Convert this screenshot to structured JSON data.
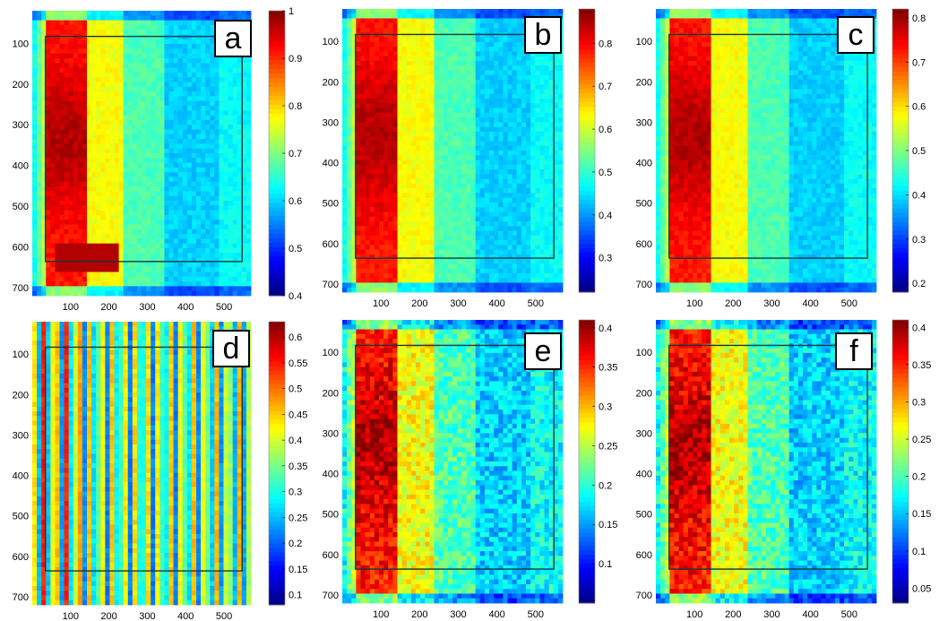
{
  "figure": {
    "panels": [
      {
        "id": "a",
        "label": "a"
      },
      {
        "id": "b",
        "label": "b"
      },
      {
        "id": "c",
        "label": "c"
      },
      {
        "id": "d",
        "label": "d"
      },
      {
        "id": "e",
        "label": "e"
      },
      {
        "id": "f",
        "label": "f"
      }
    ]
  },
  "chart_data": [
    {
      "type": "heatmap",
      "panel": "a",
      "colormap": "jet",
      "pattern": "smooth",
      "x_ticks": [
        100,
        200,
        300,
        400,
        500
      ],
      "y_ticks": [
        100,
        200,
        300,
        400,
        500,
        600,
        700
      ],
      "xlim": [
        0,
        570
      ],
      "ylim": [
        20,
        720
      ],
      "colorbar": {
        "min": 0.4,
        "max": 1.0,
        "ticks": [
          "0.4",
          "0.5",
          "0.6",
          "0.7",
          "0.8",
          "0.9",
          "1"
        ]
      }
    },
    {
      "type": "heatmap",
      "panel": "b",
      "colormap": "jet",
      "pattern": "smooth",
      "x_ticks": [
        100,
        200,
        300,
        400,
        500
      ],
      "y_ticks": [
        100,
        200,
        300,
        400,
        500,
        600,
        700
      ],
      "xlim": [
        0,
        570
      ],
      "ylim": [
        20,
        720
      ],
      "colorbar": {
        "min": 0.22,
        "max": 0.88,
        "ticks": [
          "0.3",
          "0.4",
          "0.5",
          "0.6",
          "0.7",
          "0.8"
        ]
      }
    },
    {
      "type": "heatmap",
      "panel": "c",
      "colormap": "jet",
      "pattern": "smooth",
      "x_ticks": [
        100,
        200,
        300,
        400,
        500
      ],
      "y_ticks": [
        100,
        200,
        300,
        400,
        500,
        600,
        700
      ],
      "xlim": [
        0,
        570
      ],
      "ylim": [
        20,
        720
      ],
      "colorbar": {
        "min": 0.18,
        "max": 0.82,
        "ticks": [
          "0.2",
          "0.3",
          "0.4",
          "0.5",
          "0.6",
          "0.7",
          "0.8"
        ]
      }
    },
    {
      "type": "heatmap",
      "panel": "d",
      "colormap": "jet",
      "pattern": "stripes",
      "x_ticks": [
        100,
        200,
        300,
        400,
        500
      ],
      "y_ticks": [
        100,
        200,
        300,
        400,
        500,
        600,
        700
      ],
      "xlim": [
        0,
        570
      ],
      "ylim": [
        20,
        720
      ],
      "colorbar": {
        "min": 0.08,
        "max": 0.63,
        "ticks": [
          "0.1",
          "0.15",
          "0.2",
          "0.25",
          "0.3",
          "0.35",
          "0.4",
          "0.45",
          "0.5",
          "0.55",
          "0.6"
        ]
      }
    },
    {
      "type": "heatmap",
      "panel": "e",
      "colormap": "jet",
      "pattern": "noisy",
      "x_ticks": [
        100,
        200,
        300,
        400,
        500
      ],
      "y_ticks": [
        100,
        200,
        300,
        400,
        500,
        600,
        700
      ],
      "xlim": [
        0,
        570
      ],
      "ylim": [
        20,
        720
      ],
      "colorbar": {
        "min": 0.05,
        "max": 0.41,
        "ticks": [
          "0.1",
          "0.15",
          "0.2",
          "0.25",
          "0.3",
          "0.35",
          "0.4"
        ]
      }
    },
    {
      "type": "heatmap",
      "panel": "f",
      "colormap": "jet",
      "pattern": "noisy",
      "x_ticks": [
        100,
        200,
        300,
        400,
        500
      ],
      "y_ticks": [
        100,
        200,
        300,
        400,
        500,
        600,
        700
      ],
      "xlim": [
        0,
        570
      ],
      "ylim": [
        20,
        720
      ],
      "colorbar": {
        "min": 0.03,
        "max": 0.41,
        "ticks": [
          "0.05",
          "0.1",
          "0.15",
          "0.2",
          "0.25",
          "0.3",
          "0.35",
          "0.4"
        ]
      }
    }
  ]
}
